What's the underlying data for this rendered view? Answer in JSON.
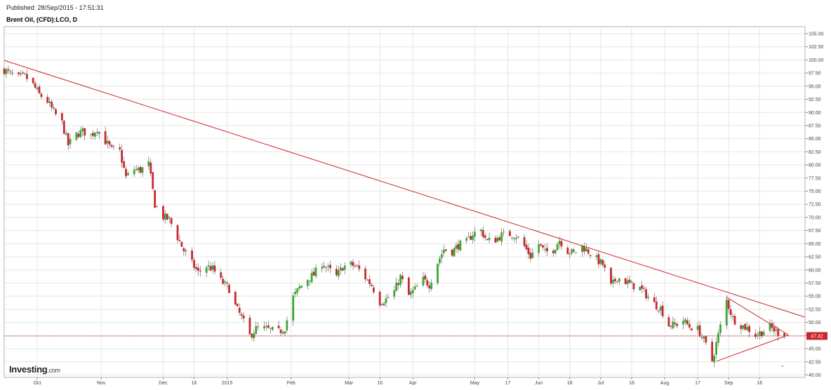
{
  "header": {
    "published": "Published: 28/Sep/2015 - 17:51:31",
    "symbol": "Brent Oil, (CFD):LCO, D"
  },
  "logo": {
    "text": "Investing",
    "suffix": ".com"
  },
  "colors": {
    "up": "#3aa834",
    "down": "#c8282d",
    "trendline": "#c8282d",
    "grid": "#e6e6e6",
    "axis": "#888888",
    "last_price_bg": "#c8282d"
  },
  "chart_data": {
    "type": "candlestick",
    "title": "Brent Oil, (CFD):LCO, D",
    "ylim": [
      40,
      106
    ],
    "y_ticks": [
      "105.00",
      "102.50",
      "100.00",
      "97.50",
      "95.00",
      "92.50",
      "90.00",
      "87.50",
      "85.00",
      "82.50",
      "80.00",
      "77.50",
      "75.00",
      "72.50",
      "70.00",
      "67.50",
      "65.00",
      "62.50",
      "60.00",
      "57.50",
      "55.00",
      "52.50",
      "50.00",
      "47.50",
      "45.00",
      "42.50",
      "40.00"
    ],
    "x_ticks": [
      {
        "label": "Oct",
        "date": "2014-10-01"
      },
      {
        "label": "Nov",
        "date": "2014-11-01"
      },
      {
        "label": "Dec",
        "date": "2014-12-01"
      },
      {
        "label": "16",
        "date": "2014-12-16"
      },
      {
        "label": "2015",
        "date": "2015-01-01"
      },
      {
        "label": "Feb",
        "date": "2015-02-01"
      },
      {
        "label": "Mar",
        "date": "2015-03-01"
      },
      {
        "label": "16",
        "date": "2015-03-16"
      },
      {
        "label": "Apr",
        "date": "2015-04-01"
      },
      {
        "label": "May",
        "date": "2015-05-01"
      },
      {
        "label": "17",
        "date": "2015-05-17"
      },
      {
        "label": "Jun",
        "date": "2015-06-01"
      },
      {
        "label": "16",
        "date": "2015-06-16"
      },
      {
        "label": "Jul",
        "date": "2015-07-01"
      },
      {
        "label": "16",
        "date": "2015-07-16"
      },
      {
        "label": "Aug",
        "date": "2015-08-01"
      },
      {
        "label": "17",
        "date": "2015-08-17"
      },
      {
        "label": "Sep",
        "date": "2015-09-01"
      },
      {
        "label": "16",
        "date": "2015-09-16"
      }
    ],
    "x_range": [
      "2014-09-15",
      "2015-10-08"
    ],
    "last_price": 47.42,
    "last_price_label": "47.42",
    "closes": [
      {
        "date": "2014-09-15",
        "close": 98.1
      },
      {
        "date": "2014-09-18",
        "close": 97.3
      },
      {
        "date": "2014-09-22",
        "close": 96.6
      },
      {
        "date": "2014-09-25",
        "close": 96.9
      },
      {
        "date": "2014-09-29",
        "close": 95.2
      },
      {
        "date": "2014-10-02",
        "close": 93.4
      },
      {
        "date": "2014-10-06",
        "close": 92.1
      },
      {
        "date": "2014-10-09",
        "close": 90.0
      },
      {
        "date": "2014-10-13",
        "close": 88.0
      },
      {
        "date": "2014-10-16",
        "close": 83.8
      },
      {
        "date": "2014-10-20",
        "close": 85.8
      },
      {
        "date": "2014-10-23",
        "close": 86.4
      },
      {
        "date": "2014-10-27",
        "close": 85.6
      },
      {
        "date": "2014-10-30",
        "close": 86.9
      },
      {
        "date": "2014-11-03",
        "close": 84.5
      },
      {
        "date": "2014-11-06",
        "close": 82.9
      },
      {
        "date": "2014-11-10",
        "close": 82.6
      },
      {
        "date": "2014-11-13",
        "close": 77.6
      },
      {
        "date": "2014-11-17",
        "close": 79.2
      },
      {
        "date": "2014-11-20",
        "close": 79.0
      },
      {
        "date": "2014-11-24",
        "close": 80.2
      },
      {
        "date": "2014-11-27",
        "close": 72.5
      },
      {
        "date": "2014-12-01",
        "close": 70.1
      },
      {
        "date": "2014-12-04",
        "close": 69.6
      },
      {
        "date": "2014-12-08",
        "close": 66.2
      },
      {
        "date": "2014-12-11",
        "close": 63.7
      },
      {
        "date": "2014-12-15",
        "close": 61.2
      },
      {
        "date": "2014-12-18",
        "close": 59.5
      },
      {
        "date": "2014-12-22",
        "close": 60.7
      },
      {
        "date": "2014-12-25",
        "close": 60.2
      },
      {
        "date": "2014-12-29",
        "close": 57.9
      },
      {
        "date": "2015-01-02",
        "close": 56.4
      },
      {
        "date": "2015-01-05",
        "close": 53.1
      },
      {
        "date": "2015-01-08",
        "close": 50.9
      },
      {
        "date": "2015-01-12",
        "close": 47.4
      },
      {
        "date": "2015-01-15",
        "close": 48.8
      },
      {
        "date": "2015-01-19",
        "close": 48.8
      },
      {
        "date": "2015-01-22",
        "close": 48.5
      },
      {
        "date": "2015-01-26",
        "close": 48.2
      },
      {
        "date": "2015-01-29",
        "close": 49.0
      },
      {
        "date": "2015-02-02",
        "close": 54.8
      },
      {
        "date": "2015-02-05",
        "close": 56.6
      },
      {
        "date": "2015-02-09",
        "close": 58.3
      },
      {
        "date": "2015-02-12",
        "close": 59.1
      },
      {
        "date": "2015-02-16",
        "close": 61.3
      },
      {
        "date": "2015-02-19",
        "close": 60.2
      },
      {
        "date": "2015-02-23",
        "close": 58.7
      },
      {
        "date": "2015-02-26",
        "close": 60.6
      },
      {
        "date": "2015-03-02",
        "close": 61.0
      },
      {
        "date": "2015-03-05",
        "close": 60.5
      },
      {
        "date": "2015-03-09",
        "close": 58.5
      },
      {
        "date": "2015-03-12",
        "close": 57.1
      },
      {
        "date": "2015-03-16",
        "close": 53.9
      },
      {
        "date": "2015-03-19",
        "close": 54.4
      },
      {
        "date": "2015-03-23",
        "close": 55.9
      },
      {
        "date": "2015-03-26",
        "close": 58.7
      },
      {
        "date": "2015-03-30",
        "close": 55.1
      },
      {
        "date": "2015-04-02",
        "close": 56.3
      },
      {
        "date": "2015-04-06",
        "close": 58.1
      },
      {
        "date": "2015-04-09",
        "close": 57.2
      },
      {
        "date": "2015-04-13",
        "close": 61.5
      },
      {
        "date": "2015-04-16",
        "close": 63.9
      },
      {
        "date": "2015-04-20",
        "close": 63.5
      },
      {
        "date": "2015-04-23",
        "close": 64.7
      },
      {
        "date": "2015-04-27",
        "close": 65.3
      },
      {
        "date": "2015-04-30",
        "close": 66.9
      },
      {
        "date": "2015-05-04",
        "close": 67.5
      },
      {
        "date": "2015-05-07",
        "close": 65.5
      },
      {
        "date": "2015-05-11",
        "close": 65.8
      },
      {
        "date": "2015-05-14",
        "close": 66.6
      },
      {
        "date": "2015-05-18",
        "close": 66.8
      },
      {
        "date": "2015-05-21",
        "close": 66.5
      },
      {
        "date": "2015-05-25",
        "close": 64.5
      },
      {
        "date": "2015-05-28",
        "close": 62.6
      },
      {
        "date": "2015-06-01",
        "close": 64.9
      },
      {
        "date": "2015-06-04",
        "close": 63.3
      },
      {
        "date": "2015-06-08",
        "close": 63.9
      },
      {
        "date": "2015-06-11",
        "close": 65.7
      },
      {
        "date": "2015-06-15",
        "close": 63.6
      },
      {
        "date": "2015-06-18",
        "close": 63.2
      },
      {
        "date": "2015-06-22",
        "close": 64.5
      },
      {
        "date": "2015-06-25",
        "close": 63.5
      },
      {
        "date": "2015-06-29",
        "close": 62.0
      },
      {
        "date": "2015-07-02",
        "close": 61.0
      },
      {
        "date": "2015-07-06",
        "close": 56.8
      },
      {
        "date": "2015-07-09",
        "close": 58.6
      },
      {
        "date": "2015-07-13",
        "close": 57.8
      },
      {
        "date": "2015-07-16",
        "close": 57.1
      },
      {
        "date": "2015-07-20",
        "close": 56.5
      },
      {
        "date": "2015-07-23",
        "close": 55.3
      },
      {
        "date": "2015-07-27",
        "close": 53.5
      },
      {
        "date": "2015-07-30",
        "close": 52.7
      },
      {
        "date": "2015-08-03",
        "close": 49.5
      },
      {
        "date": "2015-08-06",
        "close": 49.5
      },
      {
        "date": "2015-08-10",
        "close": 50.4
      },
      {
        "date": "2015-08-13",
        "close": 49.2
      },
      {
        "date": "2015-08-17",
        "close": 48.7
      },
      {
        "date": "2015-08-20",
        "close": 46.6
      },
      {
        "date": "2015-08-24",
        "close": 42.7
      },
      {
        "date": "2015-08-27",
        "close": 47.6
      },
      {
        "date": "2015-08-31",
        "close": 54.2
      },
      {
        "date": "2015-09-03",
        "close": 50.7
      },
      {
        "date": "2015-09-07",
        "close": 49.5
      },
      {
        "date": "2015-09-10",
        "close": 48.9
      },
      {
        "date": "2015-09-14",
        "close": 47.6
      },
      {
        "date": "2015-09-17",
        "close": 48.2
      },
      {
        "date": "2015-09-21",
        "close": 49.1
      },
      {
        "date": "2015-09-24",
        "close": 48.3
      },
      {
        "date": "2015-09-28",
        "close": 47.42
      }
    ],
    "trendlines": [
      {
        "from": {
          "date": "2014-09-15",
          "price": 99.9
        },
        "to": {
          "date": "2015-10-08",
          "price": 51.0
        }
      },
      {
        "from": {
          "date": "2015-08-31",
          "price": 54.8
        },
        "to": {
          "date": "2015-09-30",
          "price": 47.6
        }
      },
      {
        "from": {
          "date": "2015-08-26",
          "price": 42.6
        },
        "to": {
          "date": "2015-09-30",
          "price": 47.6
        }
      }
    ]
  }
}
